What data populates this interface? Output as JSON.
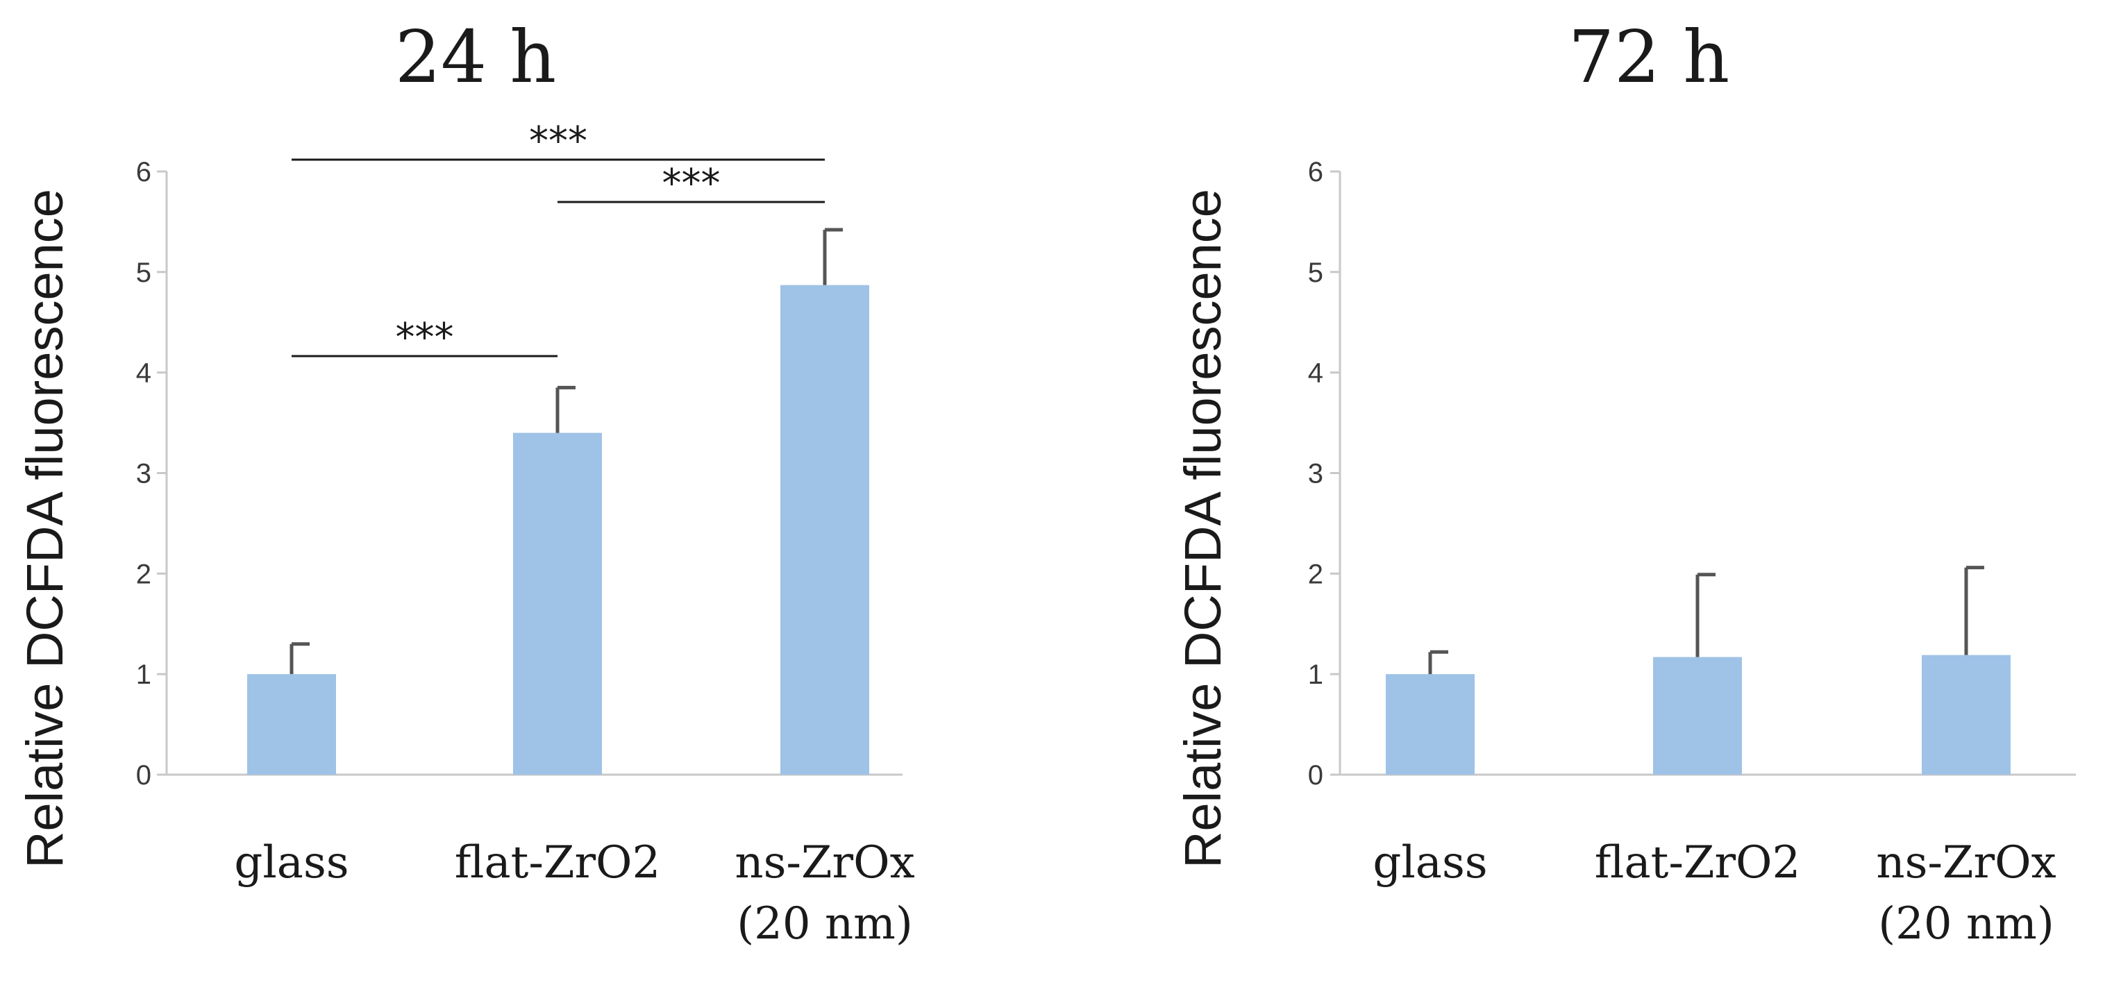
{
  "chart_data": [
    {
      "type": "bar",
      "title": "24 h",
      "ylabel": "Relative DCFDA fluorescence",
      "xlabel": "",
      "ylim": [
        0,
        6
      ],
      "yticks": [
        "0",
        "1",
        "2",
        "3",
        "4",
        "5",
        "6"
      ],
      "categories": [
        [
          "glass"
        ],
        [
          "flat-ZrO2"
        ],
        [
          "ns-ZrOx",
          "(20 nm)"
        ]
      ],
      "values": [
        1.0,
        3.4,
        4.87
      ],
      "errors": [
        0.3,
        0.45,
        0.55
      ],
      "bar_color": "#9fc2e7",
      "significance": [
        {
          "from": 0,
          "to": 1,
          "label": "***"
        },
        {
          "from": 1,
          "to": 2,
          "label": "***"
        },
        {
          "from": 0,
          "to": 2,
          "label": "***"
        }
      ]
    },
    {
      "type": "bar",
      "title": "72 h",
      "ylabel": "Relative DCFDA fluorescence",
      "xlabel": "",
      "ylim": [
        0,
        6
      ],
      "yticks": [
        "0",
        "1",
        "2",
        "3",
        "4",
        "5",
        "6"
      ],
      "categories": [
        [
          "glass"
        ],
        [
          "flat-ZrO2"
        ],
        [
          "ns-ZrOx",
          "(20 nm)"
        ]
      ],
      "values": [
        1.0,
        1.17,
        1.19
      ],
      "errors": [
        0.22,
        0.82,
        0.87
      ],
      "bar_color": "#9fc2e7",
      "significance": []
    }
  ]
}
